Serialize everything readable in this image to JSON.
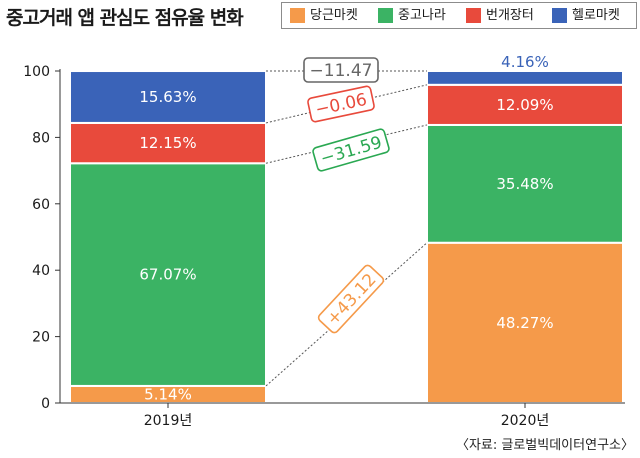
{
  "title": "중고거래 앱 관심도 점유율 변화",
  "source": "〈자료: 글로벌빅데이터연구소〉",
  "colors": {
    "당근마켓": "#f59a4a",
    "중고나라": "#3bb364",
    "번개장터": "#e84a3c",
    "헬로마켓": "#3a63b8"
  },
  "chart_data": {
    "type": "bar",
    "stacked": true,
    "categories": [
      "2019년",
      "2020년"
    ],
    "series": [
      {
        "name": "당근마켓",
        "values": [
          5.14,
          48.27
        ],
        "labels": [
          "5.14%",
          "48.27%"
        ]
      },
      {
        "name": "중고나라",
        "values": [
          67.07,
          35.48
        ],
        "labels": [
          "67.07%",
          "35.48%"
        ]
      },
      {
        "name": "번개장터",
        "values": [
          12.15,
          12.09
        ],
        "labels": [
          "12.15%",
          "12.09%"
        ]
      },
      {
        "name": "헬로마켓",
        "values": [
          15.63,
          4.16
        ],
        "labels": [
          "15.63%",
          "4.16%"
        ]
      }
    ],
    "ylim": [
      0,
      100
    ],
    "yticks": [
      "0",
      "20",
      "40",
      "60",
      "80",
      "100"
    ],
    "legend_position": "top-right",
    "grid": false,
    "annotations": [
      {
        "series": "헬로마켓",
        "text": "−11.47",
        "color": "#666666"
      },
      {
        "series": "번개장터",
        "text": "−0.06",
        "color": "#e84a3c"
      },
      {
        "series": "중고나라",
        "text": "−31.59",
        "color": "#2aa852"
      },
      {
        "series": "당근마켓",
        "text": "+43.12",
        "color": "#f59a4a"
      }
    ]
  }
}
